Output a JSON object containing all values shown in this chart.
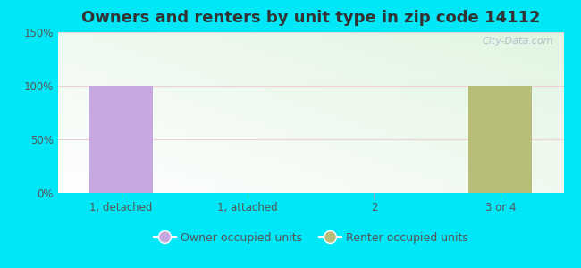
{
  "title": "Owners and renters by unit type in zip code 14112",
  "categories": [
    "1, detached",
    "1, attached",
    "2",
    "3 or 4"
  ],
  "owner_values": [
    100,
    0,
    0,
    0
  ],
  "renter_values": [
    0,
    0,
    0,
    100
  ],
  "owner_color": "#c8a8e0",
  "renter_color": "#b8be7a",
  "owner_label": "Owner occupied units",
  "renter_label": "Renter occupied units",
  "ylim": [
    0,
    150
  ],
  "yticks": [
    0,
    50,
    100,
    150
  ],
  "ytick_labels": [
    "0%",
    "50%",
    "100%",
    "150%"
  ],
  "background_outer": "#00e8f8",
  "bar_width": 0.5,
  "title_fontsize": 13,
  "watermark": "City-Data.com"
}
